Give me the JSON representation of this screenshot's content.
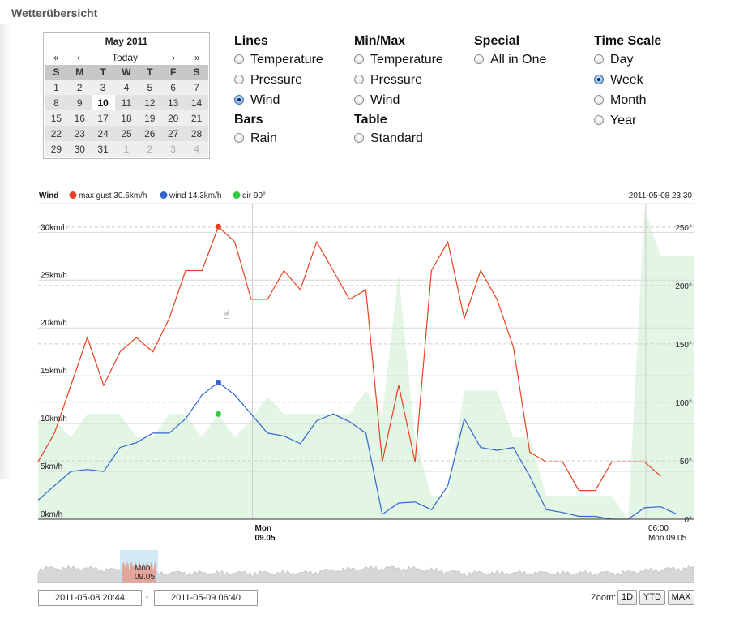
{
  "page": {
    "title": "Wetterübersicht"
  },
  "calendar": {
    "title": "May 2011",
    "nav": {
      "prev_year": "«",
      "prev_month": "‹",
      "today": "Today",
      "next_month": "›",
      "next_year": "»"
    },
    "weekdays": [
      "S",
      "M",
      "T",
      "W",
      "T",
      "F",
      "S"
    ],
    "weeks": [
      [
        "1",
        "2",
        "3",
        "4",
        "5",
        "6",
        "7"
      ],
      [
        "8",
        "9",
        "10",
        "11",
        "12",
        "13",
        "14"
      ],
      [
        "15",
        "16",
        "17",
        "18",
        "19",
        "20",
        "21"
      ],
      [
        "22",
        "23",
        "24",
        "25",
        "26",
        "27",
        "28"
      ],
      [
        "29",
        "30",
        "31",
        "1",
        "2",
        "3",
        "4"
      ]
    ],
    "selected_day": "10"
  },
  "options": {
    "lines": {
      "heading": "Lines",
      "items": [
        {
          "label": "Temperature",
          "selected": false
        },
        {
          "label": "Pressure",
          "selected": false
        },
        {
          "label": "Wind",
          "selected": true
        }
      ]
    },
    "bars": {
      "heading": "Bars",
      "items": [
        {
          "label": "Rain",
          "selected": false
        }
      ]
    },
    "minmax": {
      "heading": "Min/Max",
      "items": [
        {
          "label": "Temperature",
          "selected": false
        },
        {
          "label": "Pressure",
          "selected": false
        },
        {
          "label": "Wind",
          "selected": false
        }
      ]
    },
    "table": {
      "heading": "Table",
      "items": [
        {
          "label": "Standard",
          "selected": false
        }
      ]
    },
    "special": {
      "heading": "Special",
      "items": [
        {
          "label": "All in One",
          "selected": false
        }
      ]
    },
    "timescale": {
      "heading": "Time Scale",
      "items": [
        {
          "label": "Day",
          "selected": false
        },
        {
          "label": "Week",
          "selected": true
        },
        {
          "label": "Month",
          "selected": false
        },
        {
          "label": "Year",
          "selected": false
        }
      ]
    }
  },
  "chart_data": {
    "type": "line",
    "title": "Wind",
    "timestamp": "2011-05-08 23:30",
    "legend": [
      {
        "label": "max gust 30.6km/h",
        "color": "#e8411f"
      },
      {
        "label": "wind 14.3km/h",
        "color": "#3366cc"
      },
      {
        "label": "dir 90°",
        "color": "#2ecc40"
      }
    ],
    "x_unit": "hours after 2011-05-08 20:44",
    "x_range": [
      0,
      10
    ],
    "x_ticks": [
      {
        "x": 3.27,
        "line1": "Mon",
        "line2": "09.05",
        "bold": true
      },
      {
        "x": 9.27,
        "line1": "06:00",
        "line2": "Mon 09.05",
        "bold": false
      }
    ],
    "ylim_left": [
      0,
      33
    ],
    "yticks_left": [
      {
        "value": 0,
        "label": "0km/h"
      },
      {
        "value": 5,
        "label": "5km/h"
      },
      {
        "value": 10,
        "label": "10km/h"
      },
      {
        "value": 15,
        "label": "15km/h"
      },
      {
        "value": 20,
        "label": "20km/h"
      },
      {
        "value": 25,
        "label": "25km/h"
      },
      {
        "value": 30,
        "label": "30km/h"
      }
    ],
    "ylim_right": [
      0,
      270
    ],
    "yticks_right": [
      {
        "value": 0,
        "label": "0°"
      },
      {
        "value": 50,
        "label": "50°"
      },
      {
        "value": 100,
        "label": "100°"
      },
      {
        "value": 150,
        "label": "150°"
      },
      {
        "value": 200,
        "label": "200°"
      },
      {
        "value": 250,
        "label": "250°"
      }
    ],
    "grid": true,
    "series": [
      {
        "name": "max gust",
        "color": "#e8411f",
        "axis": "left",
        "x": [
          0,
          0.25,
          0.5,
          0.75,
          1,
          1.25,
          1.5,
          1.75,
          2,
          2.25,
          2.5,
          2.75,
          3,
          3.25,
          3.5,
          3.75,
          4,
          4.25,
          4.5,
          4.75,
          5,
          5.25,
          5.5,
          5.75,
          6,
          6.25,
          6.5,
          6.75,
          7,
          7.25,
          7.5,
          7.75,
          8,
          8.25,
          8.5,
          8.75,
          9,
          9.25,
          9.5,
          9.75,
          10
        ],
        "values": [
          6,
          9,
          14,
          19,
          14,
          17.5,
          19,
          17.5,
          21,
          26,
          26,
          30.6,
          29,
          23,
          23,
          26,
          24,
          29,
          26,
          23,
          24,
          6,
          14,
          6,
          26,
          29,
          21,
          26,
          23,
          18,
          7,
          6,
          6,
          3,
          3,
          6,
          6,
          6,
          4.5,
          null,
          null
        ]
      },
      {
        "name": "wind",
        "color": "#3366cc",
        "axis": "left",
        "x": [
          0,
          0.25,
          0.5,
          0.75,
          1,
          1.25,
          1.5,
          1.75,
          2,
          2.25,
          2.5,
          2.75,
          3,
          3.25,
          3.5,
          3.75,
          4,
          4.25,
          4.5,
          4.75,
          5,
          5.25,
          5.5,
          5.75,
          6,
          6.25,
          6.5,
          6.75,
          7,
          7.25,
          7.5,
          7.75,
          8,
          8.25,
          8.5,
          8.75,
          9,
          9.25,
          9.5,
          9.75,
          10
        ],
        "values": [
          2,
          3.5,
          5,
          5.2,
          5,
          7.5,
          8,
          9,
          9,
          10.5,
          13,
          14.3,
          13,
          11,
          9,
          8.7,
          7.9,
          10.3,
          11,
          10.2,
          9,
          0.5,
          1.7,
          1.8,
          1,
          3.5,
          10.5,
          7.5,
          7.2,
          7.5,
          4.5,
          1,
          0.7,
          0.3,
          0.3,
          0,
          0,
          1.2,
          1.3,
          0.5,
          null
        ]
      },
      {
        "name": "dir",
        "color": "#2ecc40",
        "axis": "right",
        "kind": "area",
        "x": [
          0,
          0.25,
          0.5,
          0.75,
          1,
          1.25,
          1.5,
          1.75,
          2,
          2.25,
          2.5,
          2.75,
          3,
          3.25,
          3.5,
          3.75,
          4,
          4.25,
          4.5,
          4.75,
          5,
          5.25,
          5.5,
          5.75,
          6,
          6.25,
          6.5,
          6.75,
          7,
          7.25,
          7.5,
          7.75,
          8,
          8.25,
          8.5,
          8.75,
          9,
          9.25,
          9.5,
          9.75,
          10
        ],
        "values": [
          85,
          85,
          70,
          90,
          90,
          90,
          70,
          70,
          90,
          90,
          70,
          90,
          70,
          85,
          105,
          90,
          90,
          90,
          90,
          90,
          110,
          90,
          210,
          70,
          20,
          20,
          110,
          110,
          110,
          70,
          70,
          20,
          20,
          20,
          20,
          20,
          0,
          265,
          225,
          225,
          225
        ]
      }
    ],
    "highlight_points": [
      {
        "series": "max gust",
        "x": 2.75,
        "value": 30.6
      },
      {
        "series": "wind",
        "x": 2.75,
        "value": 14.3
      },
      {
        "series": "dir",
        "x": 2.75,
        "value": 90
      }
    ],
    "navigator": {
      "label_line1": "Mon",
      "label_line2": "09.05"
    }
  },
  "range": {
    "from": "2011-05-08 20:44",
    "separator": "-",
    "to": "2011-05-09 06:40"
  },
  "zoom": {
    "label": "Zoom:",
    "buttons": [
      "1D",
      "YTD",
      "MAX"
    ]
  }
}
